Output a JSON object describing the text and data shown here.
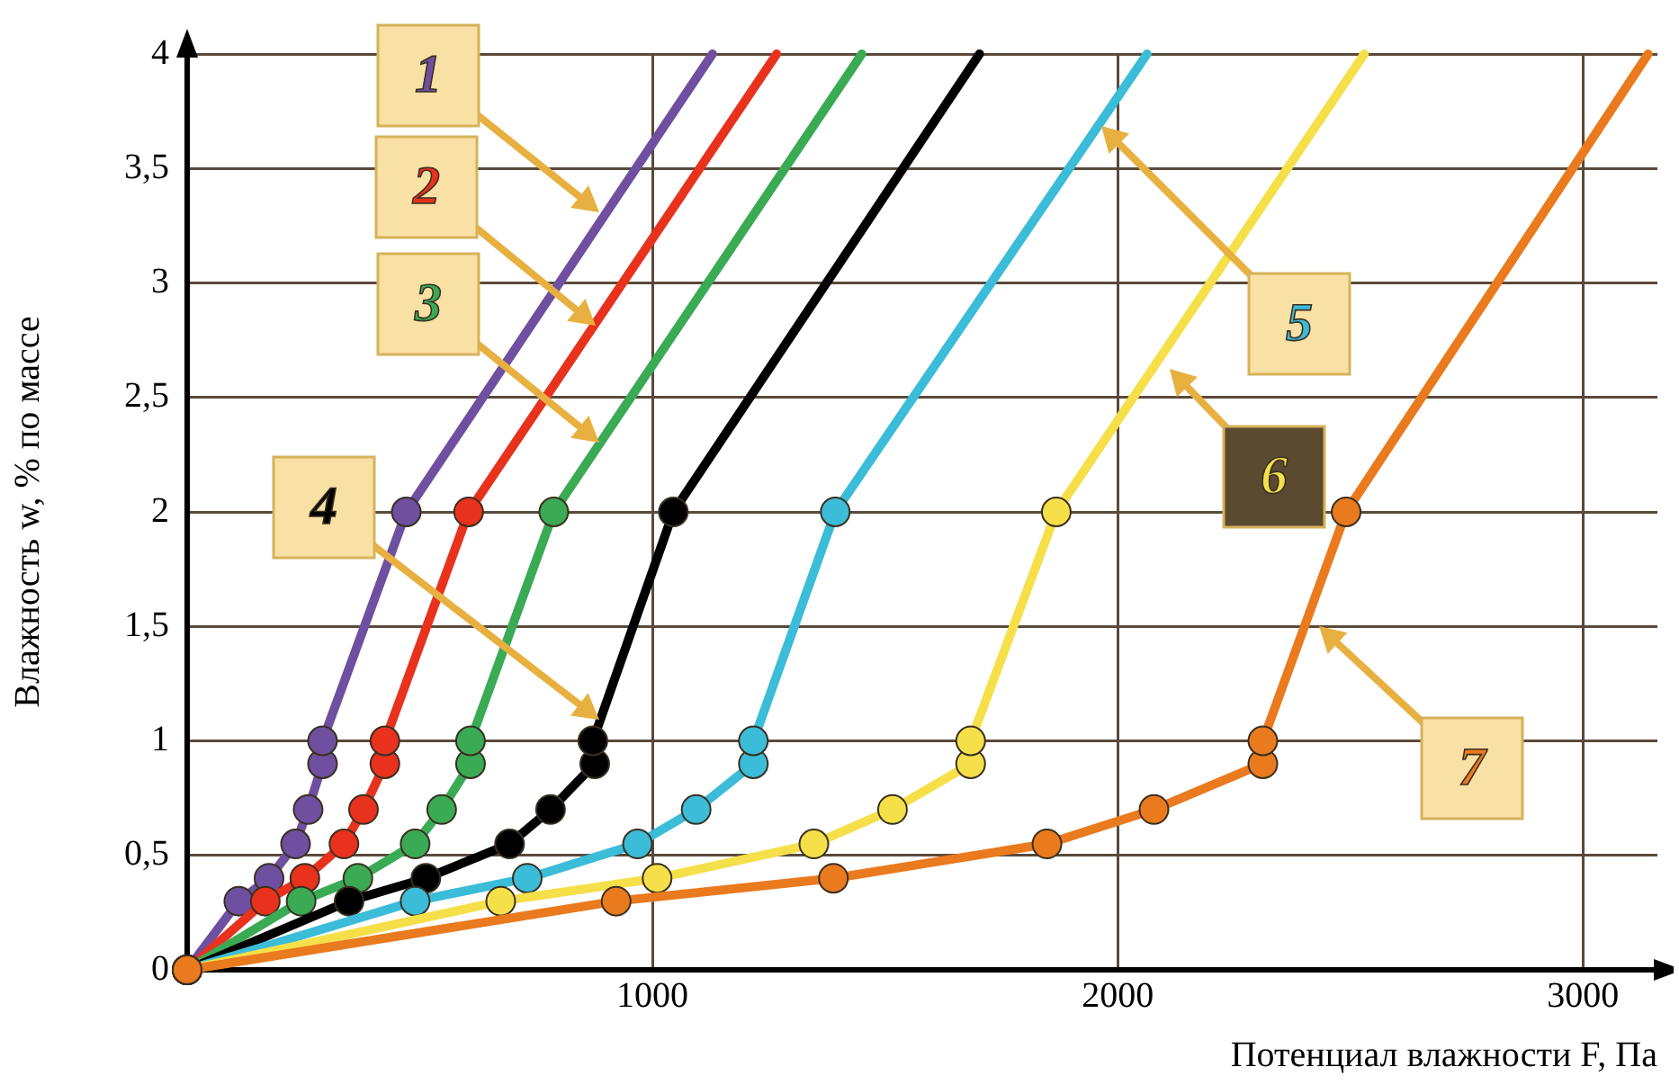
{
  "chart_data": {
    "type": "line",
    "xlabel": "Потенциал влажности F, Па",
    "ylabel": "Влажность w, % по массе",
    "xlim": [
      0,
      3160
    ],
    "ylim": [
      0,
      4
    ],
    "xticks": [
      1000,
      2000,
      3000
    ],
    "yticks": [
      0,
      {
        "value": 0.5,
        "label": "0,5"
      },
      1,
      {
        "value": 1.5,
        "label": "1,5"
      },
      2,
      {
        "value": 2.5,
        "label": "2,5"
      },
      3,
      {
        "value": 3.5,
        "label": "3,5"
      },
      4
    ],
    "grid": true,
    "legend": false,
    "marker": "circle",
    "line_style": "solid",
    "series": [
      {
        "name": "1",
        "color": "#6f4fa0",
        "x": [
          0,
          111,
          176,
          233,
          260,
          291,
          291,
          471,
          1129
        ],
        "values": [
          0,
          0.3,
          0.4,
          0.55,
          0.7,
          0.9,
          1,
          2,
          4
        ]
      },
      {
        "name": "2",
        "color": "#e8321e",
        "x": [
          0,
          168,
          253,
          337,
          379,
          425,
          425,
          605,
          1267
        ],
        "values": [
          0,
          0.3,
          0.4,
          0.55,
          0.7,
          0.9,
          1,
          2,
          4
        ]
      },
      {
        "name": "3",
        "color": "#3aaa55",
        "x": [
          0,
          245,
          367,
          490,
          547,
          609,
          609,
          788,
          1450
        ],
        "values": [
          0,
          0.3,
          0.4,
          0.55,
          0.7,
          0.9,
          1,
          2,
          4
        ]
      },
      {
        "name": "4",
        "color": "#000000",
        "x": [
          0,
          348,
          513,
          693,
          781,
          876,
          872,
          1045,
          1703
        ],
        "values": [
          0,
          0.3,
          0.4,
          0.55,
          0.7,
          0.9,
          1,
          2,
          4
        ]
      },
      {
        "name": "5",
        "color": "#3bbcd8",
        "x": [
          0,
          490,
          731,
          968,
          1094,
          1217,
          1217,
          1393,
          2063
        ],
        "values": [
          0,
          0.3,
          0.4,
          0.55,
          0.7,
          0.9,
          1,
          2,
          4
        ]
      },
      {
        "name": "6",
        "color": "#f5e04a",
        "x": [
          0,
          674,
          1010,
          1347,
          1516,
          1684,
          1684,
          1868,
          2530
        ],
        "values": [
          0,
          0.3,
          0.4,
          0.55,
          0.7,
          0.9,
          1,
          2,
          4
        ]
      },
      {
        "name": "7",
        "color": "#ea7a1e",
        "x": [
          0,
          922,
          1389,
          1848,
          2078,
          2312,
          2312,
          2491,
          3140
        ],
        "values": [
          0,
          0.3,
          0.4,
          0.55,
          0.7,
          0.9,
          1,
          2,
          4
        ]
      }
    ]
  }
}
